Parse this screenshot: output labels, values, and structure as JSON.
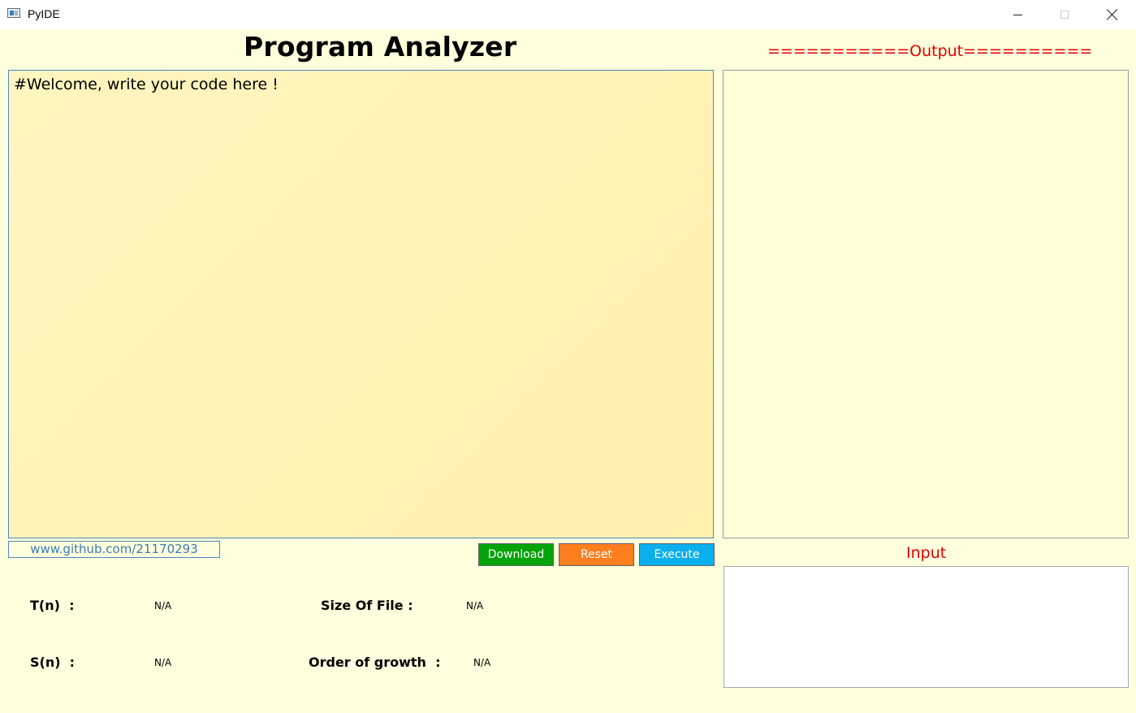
{
  "window": {
    "title": "PyIDE"
  },
  "header": {
    "title": "Program Analyzer",
    "output_label": "===========Output==========",
    "input_label": "Input"
  },
  "editor": {
    "content": "#Welcome, write your code here !"
  },
  "link": {
    "text": "www.github.com/21170293"
  },
  "buttons": {
    "download": "Download",
    "reset": "Reset",
    "execute": "Execute"
  },
  "metrics": {
    "tn_label": "T(n)  :",
    "tn_value": "N/A",
    "sn_label": "S(n)  :",
    "sn_value": "N/A",
    "size_label": "Size Of File :",
    "size_value": "N/A",
    "growth_label": "Order of growth  :",
    "growth_value": "N/A"
  },
  "colors": {
    "background": "#ffffdd",
    "accent_red": "#e00000",
    "download": "#03a30a",
    "reset": "#ff7f1f",
    "execute": "#0ab0ee"
  },
  "icons": {
    "app": "app-window-icon",
    "minimize": "minimize-icon",
    "maximize": "maximize-icon",
    "close": "close-icon"
  }
}
